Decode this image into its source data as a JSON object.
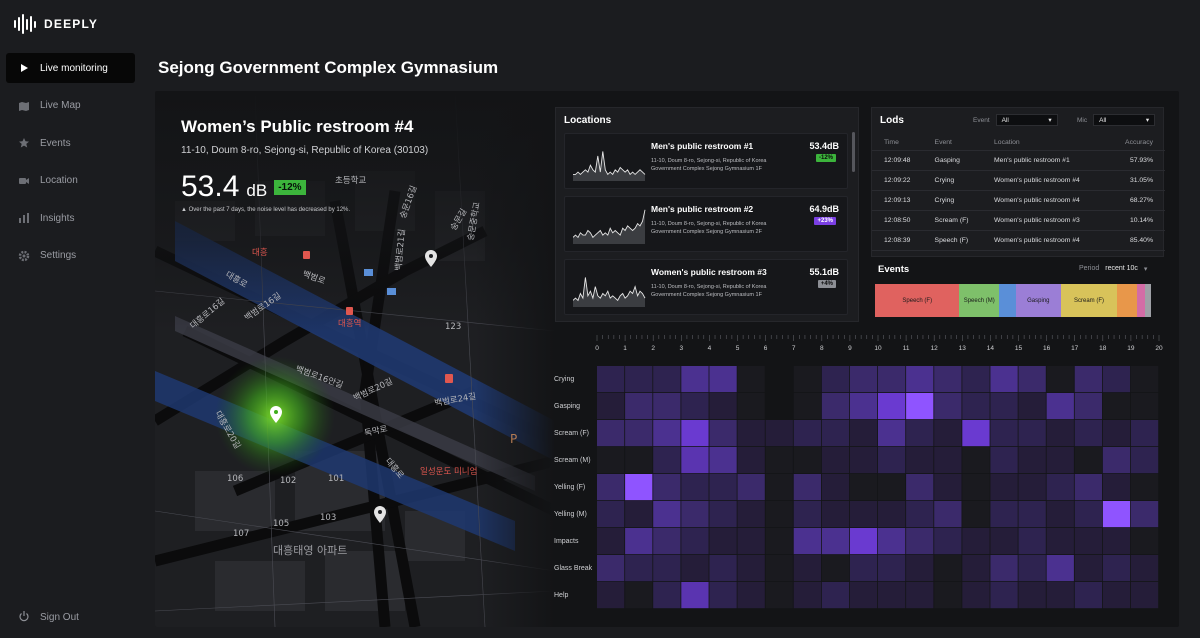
{
  "app": {
    "logo_text": "DEEPLY",
    "page_title": "Sejong Government Complex Gymnasium"
  },
  "nav": {
    "items": [
      {
        "label": "Live monitoring",
        "icon": "play-icon",
        "active": true
      },
      {
        "label": "Live Map",
        "icon": "map-icon"
      },
      {
        "label": "Events",
        "icon": "star-icon"
      },
      {
        "label": "Location",
        "icon": "camera-icon"
      },
      {
        "label": "Insights",
        "icon": "bar-chart-icon"
      },
      {
        "label": "Settings",
        "icon": "gear-icon"
      }
    ],
    "signout": "Sign Out"
  },
  "location": {
    "title": "Women’s Public restroom #4",
    "address": "11-10, Doum 8-ro, Sejong-si, Republic of Korea (30103)",
    "db_value": "53.4",
    "db_unit": "dB",
    "change": "-12%",
    "note": "▲ Over the past 7 days, the noise level has decreased by 12%."
  },
  "map": {
    "labels": [
      "대흥역",
      "일성운도 미니엄",
      "백범로",
      "백범로21길",
      "백범로16길",
      "백범로16안길",
      "백범로20길",
      "백범로24길",
      "독막로",
      "대흥로",
      "대흥로16길",
      "대흥로20길",
      "대흥로",
      "숭문16길",
      "숭문길",
      "초등학교",
      "대흥태영 아파트",
      "101",
      "102",
      "103",
      "105",
      "106",
      "107",
      "123",
      "P",
      "숭문중학교",
      "대흥"
    ]
  },
  "locations_panel": {
    "title": "Locations",
    "cards": [
      {
        "name": "Men's public restroom #1",
        "addr": "11-10, Doum 8-ro, Sejong-si, Republic of Korea Government Complex Sejong Gymnasium 1F",
        "db": "53.4dB",
        "change": "-12%",
        "badge_color": "#3cb43c",
        "spark": [
          2,
          2,
          3,
          2,
          3,
          4,
          3,
          6,
          4,
          3,
          10,
          3,
          12,
          4,
          2,
          3,
          2,
          4,
          3,
          5,
          4,
          3,
          4,
          2,
          3,
          2,
          3,
          4,
          3,
          2
        ]
      },
      {
        "name": "Men's public restroom #2",
        "addr": "11-10, Doum 8-ro, Sejong-si, Republic of Korea Government Complex Sejong Gymnasium 2F",
        "db": "64.9dB",
        "change": "+23%",
        "badge_color": "#7b3fe4",
        "spark": [
          2,
          3,
          2,
          4,
          3,
          3,
          5,
          4,
          2,
          3,
          4,
          5,
          3,
          4,
          3,
          6,
          4,
          5,
          4,
          3,
          6,
          5,
          7,
          6,
          5,
          6,
          8,
          7,
          9,
          14
        ]
      },
      {
        "name": "Women's public restroom #3",
        "addr": "11-10, Doum 8-ro, Sejong-si, Republic of Korea Government Complex Sejong Gymnasium 1F",
        "db": "55.1dB",
        "change": "+4%",
        "badge_color": "#8d8f95",
        "spark": [
          2,
          3,
          2,
          5,
          3,
          12,
          4,
          6,
          3,
          8,
          4,
          3,
          5,
          4,
          6,
          3,
          4,
          3,
          2,
          4,
          5,
          3,
          4,
          6,
          5,
          8,
          4,
          6,
          5,
          3
        ]
      }
    ]
  },
  "logs": {
    "title": "Lods",
    "event_label": "Event",
    "event_value": "All",
    "mic_label": "Mic",
    "mic_value": "All",
    "columns": [
      "Time",
      "Event",
      "Location",
      "Accuracy"
    ],
    "rows": [
      [
        "12:09:48",
        "Gasping",
        "Men's public restroom #1",
        "57.93%"
      ],
      [
        "12:09:22",
        "Crying",
        "Women's public restroom #4",
        "31.05%"
      ],
      [
        "12:09:13",
        "Crying",
        "Women's public restroom #4",
        "68.27%"
      ],
      [
        "12:08:50",
        "Scream (F)",
        "Women's public restroom #3",
        "10.14%"
      ],
      [
        "12:08:39",
        "Speech (F)",
        "Women's public restroom #4",
        "85.40%"
      ]
    ]
  },
  "events": {
    "title": "Events",
    "period_label": "Period",
    "period_value": "recent 10c",
    "segments": [
      {
        "label": "Speech (F)",
        "value": 30,
        "color": "#e0625f"
      },
      {
        "label": "Speech (M)",
        "value": 14,
        "color": "#7ec06a"
      },
      {
        "label": "",
        "value": 6,
        "color": "#5a8fd8"
      },
      {
        "label": "Gasping",
        "value": 16,
        "color": "#9b7ed6"
      },
      {
        "label": "Scream (F)",
        "value": 20,
        "color": "#d8c35a"
      },
      {
        "label": "",
        "value": 7,
        "color": "#e8974a"
      },
      {
        "label": "",
        "value": 3,
        "color": "#d36ca6"
      },
      {
        "label": "",
        "value": 2,
        "color": "#9ea0a6"
      }
    ]
  },
  "chart_data": {
    "type": "heatmap",
    "x": [
      0,
      1,
      2,
      3,
      4,
      5,
      6,
      7,
      8,
      9,
      10,
      11,
      12,
      13,
      14,
      15,
      16,
      17,
      18,
      19,
      20
    ],
    "rows": [
      "Crying",
      "Gasping",
      "Scream (F)",
      "Scream (M)",
      "Yelling (F)",
      "Yelling (M)",
      "Impacts",
      "Glass Break",
      "Help"
    ],
    "values": [
      [
        2,
        2,
        2,
        4,
        4,
        0,
        -1,
        0,
        2,
        3,
        3,
        4,
        3,
        2,
        4,
        3,
        0,
        3,
        2,
        0
      ],
      [
        1,
        3,
        3,
        2,
        1,
        0,
        -1,
        0,
        3,
        4,
        6,
        8,
        3,
        2,
        2,
        1,
        4,
        3,
        0,
        0
      ],
      [
        3,
        3,
        4,
        6,
        3,
        1,
        1,
        2,
        2,
        1,
        4,
        2,
        1,
        6,
        2,
        2,
        1,
        2,
        1,
        2
      ],
      [
        0,
        0,
        2,
        5,
        4,
        1,
        0,
        0,
        1,
        1,
        2,
        1,
        1,
        0,
        2,
        1,
        1,
        0,
        3,
        2
      ],
      [
        3,
        8,
        3,
        2,
        2,
        3,
        0,
        3,
        1,
        0,
        0,
        3,
        1,
        0,
        1,
        1,
        2,
        3,
        1,
        0
      ],
      [
        2,
        1,
        4,
        3,
        2,
        1,
        0,
        2,
        1,
        1,
        1,
        2,
        3,
        0,
        2,
        2,
        1,
        2,
        8,
        3
      ],
      [
        1,
        4,
        3,
        2,
        1,
        1,
        0,
        4,
        4,
        6,
        4,
        3,
        2,
        1,
        1,
        2,
        1,
        1,
        1,
        0
      ],
      [
        3,
        2,
        2,
        1,
        2,
        1,
        0,
        1,
        0,
        2,
        2,
        1,
        0,
        1,
        3,
        2,
        4,
        1,
        2,
        1
      ],
      [
        1,
        0,
        2,
        5,
        2,
        1,
        0,
        1,
        2,
        1,
        1,
        1,
        0,
        1,
        2,
        1,
        1,
        2,
        1,
        1
      ]
    ]
  }
}
